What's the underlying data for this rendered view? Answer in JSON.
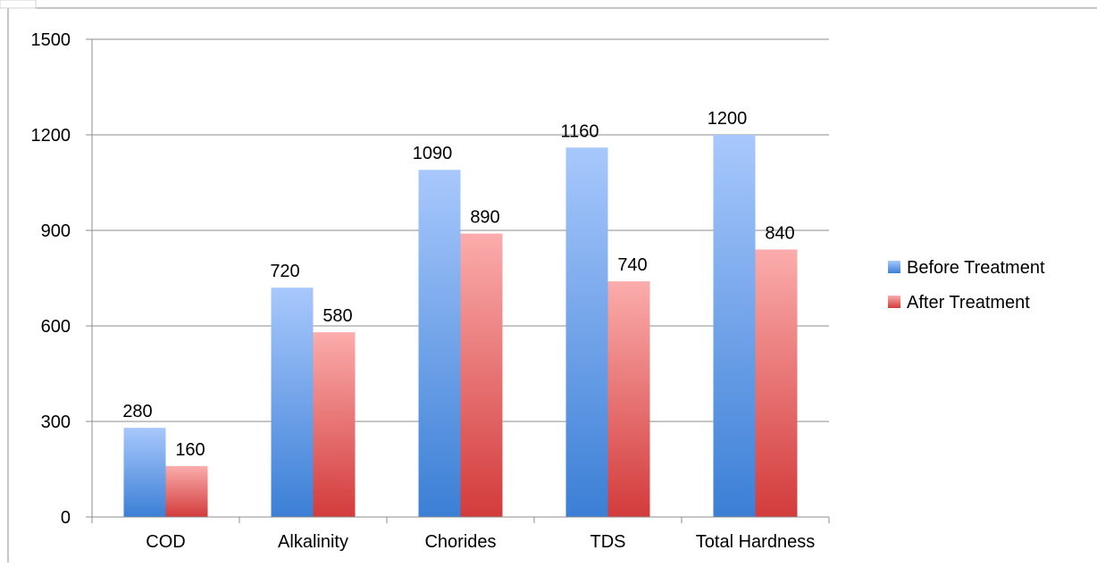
{
  "chart_data": {
    "type": "bar",
    "title": "",
    "xlabel": "",
    "ylabel": "",
    "categories": [
      "COD",
      "Alkalinity",
      "Chorides",
      "TDS",
      "Total Hardness"
    ],
    "series": [
      {
        "name": "Before Treatment",
        "values": [
          280,
          720,
          1090,
          1160,
          1200
        ],
        "color_top": "#a8c8fc",
        "color_bottom": "#3b7fd6"
      },
      {
        "name": "After Treatment",
        "values": [
          160,
          580,
          890,
          740,
          840
        ],
        "color_top": "#fbacac",
        "color_bottom": "#d33b3b"
      }
    ],
    "ylim": [
      0,
      1500
    ],
    "yticks": [
      0,
      300,
      600,
      900,
      1200,
      1500
    ],
    "grid": true,
    "legend_position": "right",
    "data_labels": true
  }
}
